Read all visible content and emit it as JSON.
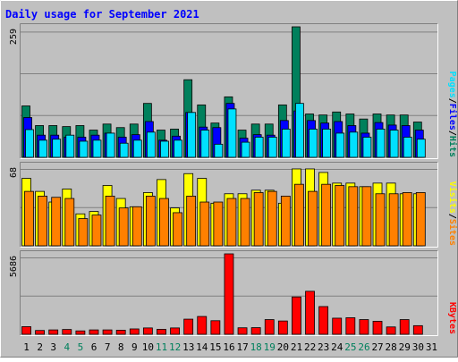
{
  "chart_data": {
    "type": "bar",
    "title": "Daily usage for September 2021",
    "x": [
      "1",
      "2",
      "3",
      "4",
      "5",
      "6",
      "7",
      "8",
      "9",
      "10",
      "11",
      "12",
      "13",
      "14",
      "15",
      "16",
      "17",
      "18",
      "19",
      "20",
      "21",
      "22",
      "23",
      "24",
      "25",
      "26",
      "27",
      "28",
      "29",
      "30",
      "31"
    ],
    "weekend_days": [
      "4",
      "5",
      "11",
      "12",
      "18",
      "19",
      "25",
      "26"
    ],
    "panels": [
      {
        "name": "hits-files-pages",
        "ymax_label": "259",
        "ylim": [
          0,
          259
        ],
        "series": [
          {
            "name": "Hits",
            "color": "#00805c",
            "values": [
              102,
              63,
              63,
              61,
              63,
              54,
              66,
              59,
              66,
              107,
              54,
              56,
              154,
              104,
              68,
              120,
              54,
              66,
              66,
              104,
              259,
              86,
              84,
              90,
              86,
              76,
              86,
              84,
              84,
              70,
              0
            ]
          },
          {
            "name": "Files",
            "color": "#0000ff",
            "values": [
              79,
              44,
              44,
              40,
              40,
              44,
              48,
              40,
              45,
              71,
              34,
              42,
              89,
              60,
              59,
              107,
              38,
              45,
              44,
              73,
              92,
              73,
              68,
              71,
              63,
              48,
              69,
              64,
              63,
              54,
              0
            ]
          },
          {
            "name": "Pages",
            "color": "#00e0ff",
            "values": [
              55,
              34,
              36,
              44,
              32,
              34,
              48,
              28,
              34,
              50,
              32,
              34,
              89,
              54,
              26,
              96,
              30,
              40,
              40,
              56,
              107,
              56,
              56,
              48,
              50,
              40,
              56,
              54,
              40,
              36,
              0
            ]
          }
        ],
        "legend": [
          "Hits",
          "Files",
          "Pages"
        ]
      },
      {
        "name": "visits-sites",
        "ymax_label": "68",
        "ylim": [
          0,
          68
        ],
        "series": [
          {
            "name": "Visits",
            "color": "#ffff00",
            "values": [
              57,
              46,
              37,
              48,
              27,
              29,
              51,
              40,
              33,
              45,
              56,
              32,
              61,
              57,
              36,
              44,
              44,
              47,
              47,
              36,
              65,
              65,
              62,
              53,
              53,
              50,
              53,
              53,
              44,
              44,
              0
            ]
          },
          {
            "name": "Sites",
            "color": "#ff8000",
            "values": [
              46,
              42,
              41,
              40,
              23,
              26,
              42,
              32,
              33,
              42,
              40,
              28,
              42,
              37,
              37,
              40,
              40,
              45,
              46,
              42,
              52,
              46,
              52,
              51,
              50,
              50,
              44,
              44,
              45,
              45,
              0
            ]
          }
        ],
        "legend": [
          "Sites",
          "Visits"
        ]
      },
      {
        "name": "kbytes",
        "ymax_label": "5686",
        "ylim": [
          0,
          5686
        ],
        "series": [
          {
            "name": "KBytes",
            "color": "#ff0000",
            "values": [
              540,
              270,
              310,
              340,
              240,
              310,
              310,
              290,
              380,
              450,
              350,
              450,
              1070,
              1260,
              960,
              5686,
              460,
              470,
              1040,
              940,
              2640,
              3040,
              1960,
              1140,
              1170,
              1040,
              920,
              520,
              1040,
              610,
              0
            ]
          }
        ],
        "legend": [
          "KBytes"
        ]
      }
    ]
  }
}
